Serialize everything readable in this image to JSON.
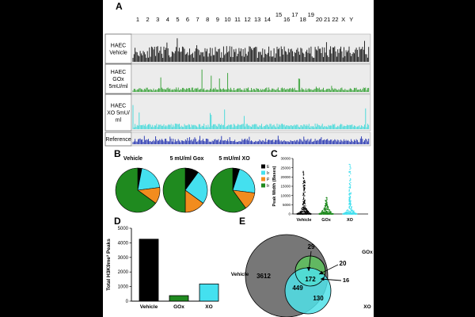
{
  "panelA": {
    "letter": "A",
    "chromosomes": [
      "1",
      "2",
      "3",
      "4",
      "5",
      "6",
      "7",
      "8",
      "9",
      "10",
      "11",
      "12",
      "13",
      "14",
      "15",
      "16",
      "17",
      "18",
      "19",
      "20",
      "21",
      "22",
      "X",
      "Y"
    ],
    "tracks": [
      {
        "lines": [
          "HAEC",
          "Vehicle"
        ],
        "color": "#111111"
      },
      {
        "lines": [
          "HAEC",
          "GOx",
          "5mU/ml"
        ],
        "color": "#2e9e2e"
      },
      {
        "lines": [
          "HAEC",
          "XO 5mU/",
          "ml"
        ],
        "color": "#3fd9d9"
      },
      {
        "lines": [
          "Reference"
        ],
        "color": "#1f2fb0"
      }
    ]
  },
  "panelB": {
    "letter": "B",
    "pie_titles": [
      "Vehicle",
      "5 mU/ml Gox",
      "5 mU/ml XO"
    ],
    "legend": [
      {
        "label": "Exon",
        "color": "#000000"
      },
      {
        "label": "Intron",
        "color": "#44e0ef"
      },
      {
        "label": "Promoter",
        "color": "#f28c1e"
      },
      {
        "label": "Intragenic",
        "color": "#1f8a1f"
      }
    ]
  },
  "panelC": {
    "letter": "C",
    "ylabel": "Peak Width (Bases)",
    "ticks": [
      "0",
      "5000",
      "10000",
      "15000",
      "20000",
      "25000",
      "30000"
    ],
    "categories": [
      "Vehicle",
      "GOx",
      "XO"
    ],
    "colors": [
      "#000000",
      "#1f8a1f",
      "#44e0ef"
    ]
  },
  "panelD": {
    "letter": "D",
    "ylabel": "Total H3K9me³ Peaks",
    "ticks": [
      "0",
      "1000",
      "2000",
      "3000",
      "4000",
      "5000"
    ],
    "colors": [
      "#000000",
      "#1f8a1f",
      "#44e0ef"
    ]
  },
  "panelE": {
    "letter": "E",
    "labels": {
      "vehicle": "Vehicle",
      "gox": "GOx",
      "xo": "XO"
    },
    "regions": {
      "vehicle_only": "3612",
      "gox_only_top": "29",
      "gox_only_right": "20",
      "center": "172",
      "arrow_16": "16",
      "vehicle_xo": "449",
      "xo_only": "130"
    },
    "colors": {
      "vehicle": "#777777",
      "gox": "#5fbf5f",
      "xo": "#4fe0e8"
    }
  },
  "chart_data": [
    {
      "type": "pie",
      "title": "Vehicle",
      "categories": [
        "Exon",
        "Intron",
        "Promoter",
        "Intragenic"
      ],
      "values": [
        3,
        20,
        12,
        65
      ]
    },
    {
      "type": "pie",
      "title": "5 mU/ml Gox",
      "categories": [
        "Exon",
        "Intron",
        "Promoter",
        "Intragenic"
      ],
      "values": [
        10,
        25,
        15,
        50
      ]
    },
    {
      "type": "pie",
      "title": "5 mU/ml XO",
      "categories": [
        "Exon",
        "Intron",
        "Promoter",
        "Intragenic"
      ],
      "values": [
        5,
        22,
        13,
        60
      ]
    },
    {
      "type": "bar",
      "categories": [
        "Vehicle",
        "GOx",
        "XO"
      ],
      "values": [
        4250,
        380,
        1180
      ],
      "ylabel": "Total H3K9me³ Peaks",
      "ylim": [
        0,
        5000
      ]
    },
    {
      "type": "scatter",
      "categories": [
        "Vehicle",
        "GOx",
        "XO"
      ],
      "ylabel": "Peak Width (Bases)",
      "ylim": [
        0,
        30000
      ],
      "max_values": [
        24000,
        9000,
        27000
      ]
    }
  ]
}
